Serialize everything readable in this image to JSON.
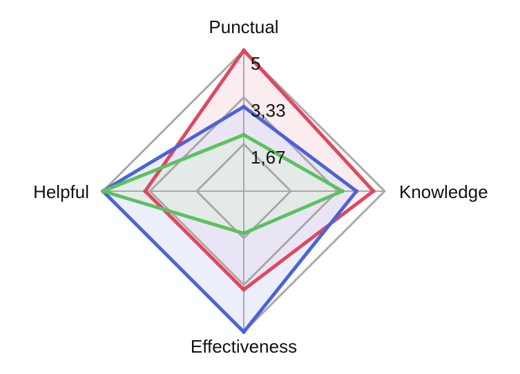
{
  "chart_data": {
    "type": "radar",
    "title": "",
    "axes": [
      "Punctual",
      "Knowledge",
      "Effectiveness",
      "Helpful"
    ],
    "r_range": [
      0,
      5
    ],
    "ticks": [
      1.67,
      3.33,
      5
    ],
    "tick_labels": [
      "1,67",
      "3,33",
      "5"
    ],
    "grid": true,
    "legend": "none",
    "series": [
      {
        "color": "#e0475e",
        "fill": "#f5dce2",
        "values": [
          5,
          4.6,
          3.5,
          3.5
        ]
      },
      {
        "color": "#4a63d9",
        "fill": "#dde0f7",
        "values": [
          3,
          4,
          5,
          5
        ]
      },
      {
        "color": "#5cc160",
        "fill": "#dcefdc",
        "values": [
          2,
          3.5,
          1.5,
          5
        ]
      }
    ]
  }
}
